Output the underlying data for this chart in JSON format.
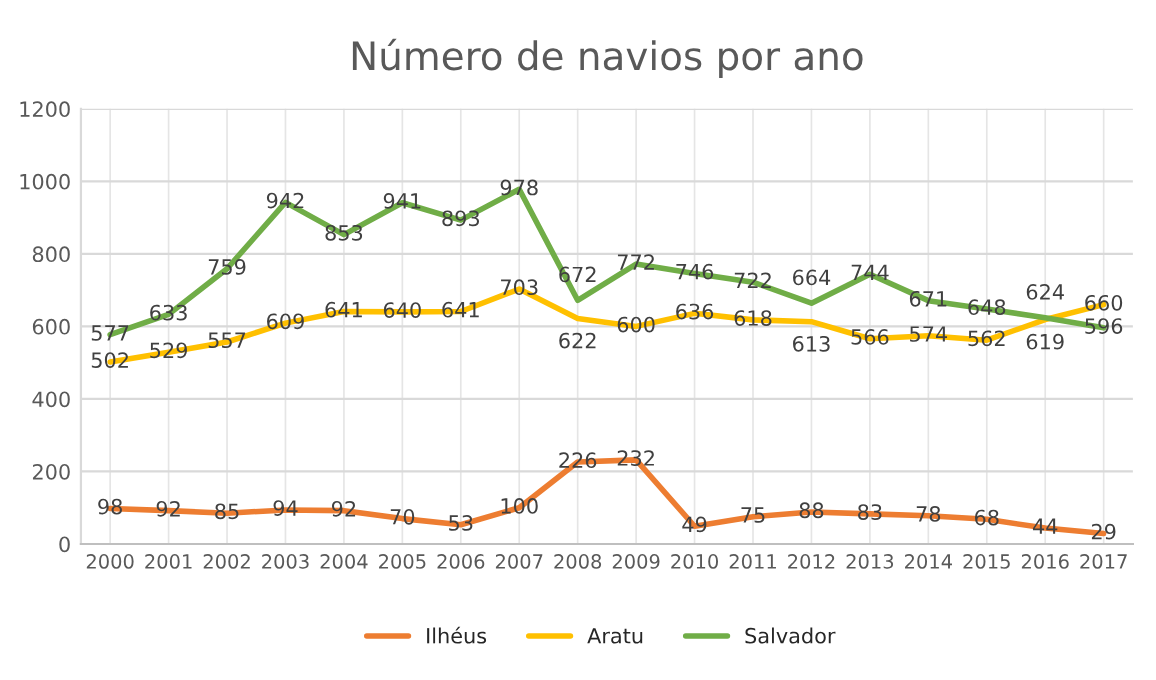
{
  "chart_data": {
    "type": "line",
    "title": "Número de navios por ano",
    "categories": [
      "2000",
      "2001",
      "2002",
      "2003",
      "2004",
      "2005",
      "2006",
      "2007",
      "2008",
      "2009",
      "2010",
      "2011",
      "2012",
      "2013",
      "2014",
      "2015",
      "2016",
      "2017"
    ],
    "series": [
      {
        "name": "Ilhéus",
        "color": "#ed7d31",
        "values": [
          98,
          92,
          85,
          94,
          92,
          70,
          53,
          100,
          226,
          232,
          49,
          75,
          88,
          83,
          78,
          68,
          44,
          29
        ]
      },
      {
        "name": "Aratu",
        "color": "#ffc000",
        "values": [
          502,
          529,
          557,
          609,
          641,
          640,
          641,
          703,
          622,
          600,
          636,
          618,
          613,
          566,
          574,
          562,
          619,
          660
        ]
      },
      {
        "name": "Salvador",
        "color": "#70ad47",
        "values": [
          577,
          633,
          759,
          942,
          853,
          941,
          893,
          978,
          672,
          772,
          746,
          722,
          664,
          744,
          671,
          648,
          624,
          596
        ]
      }
    ],
    "ylim": [
      0,
      1200
    ],
    "yticks": [
      0,
      200,
      400,
      600,
      800,
      1000,
      1200
    ],
    "grid": true,
    "legend": "bottom",
    "data_labels": true,
    "marker": "none",
    "line_style": "solid"
  }
}
